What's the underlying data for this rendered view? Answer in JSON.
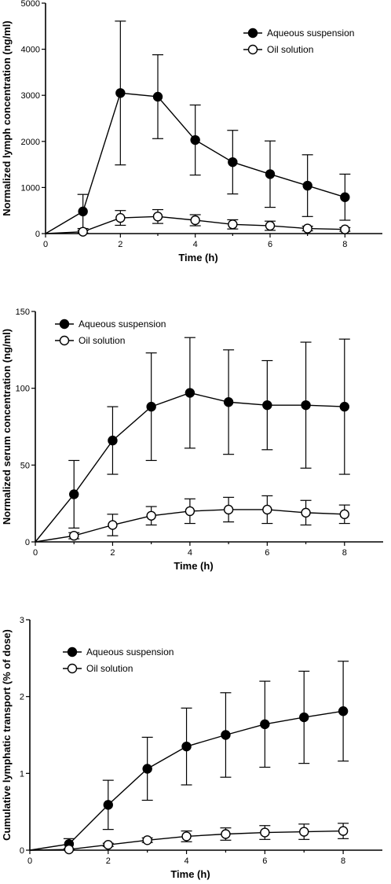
{
  "chart_data": [
    {
      "type": "line",
      "title": "",
      "xlabel": "Time (h)",
      "ylabel": "Normalized lymph concentration (ng/ml)",
      "xlim": [
        0,
        9
      ],
      "ylim": [
        0,
        5000
      ],
      "xticks": [
        0,
        2,
        4,
        6,
        8
      ],
      "yticks": [
        0,
        1000,
        2000,
        3000,
        4000,
        5000
      ],
      "legend_position": "top-right",
      "grid": false,
      "series": [
        {
          "name": "Aqueous suspension",
          "marker": "filled-circle",
          "x": [
            0,
            1,
            2,
            3,
            4,
            5,
            6,
            7,
            8
          ],
          "y": [
            0,
            480,
            3050,
            2970,
            2030,
            1550,
            1290,
            1040,
            790
          ],
          "err": [
            0,
            370,
            1560,
            910,
            760,
            690,
            720,
            670,
            500
          ]
        },
        {
          "name": "Oil solution",
          "marker": "open-circle",
          "x": [
            0,
            1,
            2,
            3,
            4,
            5,
            6,
            7,
            8
          ],
          "y": [
            0,
            40,
            340,
            370,
            290,
            200,
            170,
            110,
            90
          ],
          "err": [
            0,
            30,
            160,
            150,
            120,
            100,
            100,
            50,
            40
          ]
        }
      ]
    },
    {
      "type": "line",
      "title": "",
      "xlabel": "Time (h)",
      "ylabel": "Normalized serum concentration (ng/ml)",
      "xlim": [
        0,
        9
      ],
      "ylim": [
        0,
        150
      ],
      "xticks": [
        0,
        2,
        4,
        6,
        8
      ],
      "yticks": [
        0,
        50,
        100,
        150
      ],
      "legend_position": "top-left",
      "grid": false,
      "series": [
        {
          "name": "Aqueous suspension",
          "marker": "filled-circle",
          "x": [
            0,
            1,
            2,
            3,
            4,
            5,
            6,
            7,
            8
          ],
          "y": [
            0,
            31,
            66,
            88,
            97,
            91,
            89,
            89,
            88
          ],
          "err": [
            0,
            22,
            22,
            35,
            36,
            34,
            29,
            41,
            44
          ]
        },
        {
          "name": "Oil solution",
          "marker": "open-circle",
          "x": [
            0,
            1,
            2,
            3,
            4,
            5,
            6,
            7,
            8
          ],
          "y": [
            0,
            4,
            11,
            17,
            20,
            21,
            21,
            19,
            18
          ],
          "err": [
            0,
            2,
            7,
            6,
            8,
            8,
            9,
            8,
            6
          ]
        }
      ]
    },
    {
      "type": "line",
      "title": "",
      "xlabel": "Time (h)",
      "ylabel": "Cumulative lymphatic transport (% of dose)",
      "xlim": [
        0,
        9
      ],
      "ylim": [
        0,
        3
      ],
      "xticks": [
        0,
        2,
        4,
        6,
        8
      ],
      "yticks": [
        0,
        1,
        2,
        3
      ],
      "legend_position": "top-left",
      "grid": false,
      "series": [
        {
          "name": "Aqueous suspension",
          "marker": "filled-circle",
          "x": [
            0,
            1,
            2,
            3,
            4,
            5,
            6,
            7,
            8
          ],
          "y": [
            0,
            0.08,
            0.59,
            1.06,
            1.35,
            1.5,
            1.64,
            1.73,
            1.81
          ],
          "err": [
            0,
            0.07,
            0.32,
            0.41,
            0.5,
            0.55,
            0.56,
            0.6,
            0.65
          ]
        },
        {
          "name": "Oil solution",
          "marker": "open-circle",
          "x": [
            0,
            1,
            2,
            3,
            4,
            5,
            6,
            7,
            8
          ],
          "y": [
            0,
            0.01,
            0.07,
            0.13,
            0.18,
            0.21,
            0.23,
            0.24,
            0.25
          ],
          "err": [
            0,
            0.01,
            0.02,
            0.03,
            0.07,
            0.08,
            0.09,
            0.1,
            0.1
          ]
        }
      ]
    }
  ]
}
